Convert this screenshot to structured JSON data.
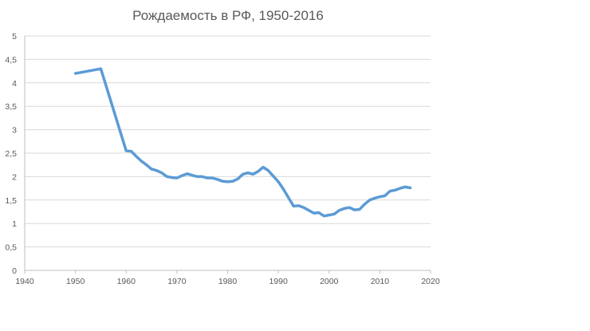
{
  "chart_data": {
    "type": "line",
    "title": "Рождаемость в РФ, 1950-2016",
    "xlabel": "",
    "ylabel": "",
    "xlim": [
      1940,
      2020
    ],
    "ylim": [
      0,
      5
    ],
    "x_ticks": [
      "1940",
      "1950",
      "1960",
      "1970",
      "1980",
      "1990",
      "2000",
      "2010",
      "2020"
    ],
    "y_ticks": [
      "0",
      "0,5",
      "1",
      "1,5",
      "2",
      "2,5",
      "3",
      "3,5",
      "4",
      "4,5",
      "5"
    ],
    "grid": "horizontal",
    "legend": "none",
    "line_color": "#5B9BD5",
    "series": [
      {
        "x": [
          1950,
          1955,
          1960,
          1961,
          1962,
          1963,
          1964,
          1965,
          1966,
          1967,
          1968,
          1969,
          1970,
          1971,
          1972,
          1973,
          1974,
          1975,
          1976,
          1977,
          1978,
          1979,
          1980,
          1981,
          1982,
          1983,
          1984,
          1985,
          1986,
          1987,
          1988,
          1989,
          1990,
          1991,
          1992,
          1993,
          1994,
          1995,
          1996,
          1997,
          1998,
          1999,
          2000,
          2001,
          2002,
          2003,
          2004,
          2005,
          2006,
          2007,
          2008,
          2009,
          2010,
          2011,
          2012,
          2013,
          2014,
          2015,
          2016
        ],
        "values": [
          4.2,
          4.3,
          2.55,
          2.54,
          2.43,
          2.33,
          2.25,
          2.16,
          2.13,
          2.08,
          2.0,
          1.98,
          1.97,
          2.02,
          2.06,
          2.03,
          2.0,
          2.0,
          1.97,
          1.97,
          1.94,
          1.9,
          1.89,
          1.9,
          1.95,
          2.05,
          2.08,
          2.05,
          2.11,
          2.2,
          2.13,
          2.01,
          1.89,
          1.73,
          1.55,
          1.37,
          1.38,
          1.34,
          1.28,
          1.22,
          1.23,
          1.16,
          1.18,
          1.2,
          1.28,
          1.32,
          1.34,
          1.29,
          1.3,
          1.41,
          1.5,
          1.54,
          1.57,
          1.59,
          1.69,
          1.71,
          1.75,
          1.78,
          1.76
        ]
      }
    ]
  }
}
